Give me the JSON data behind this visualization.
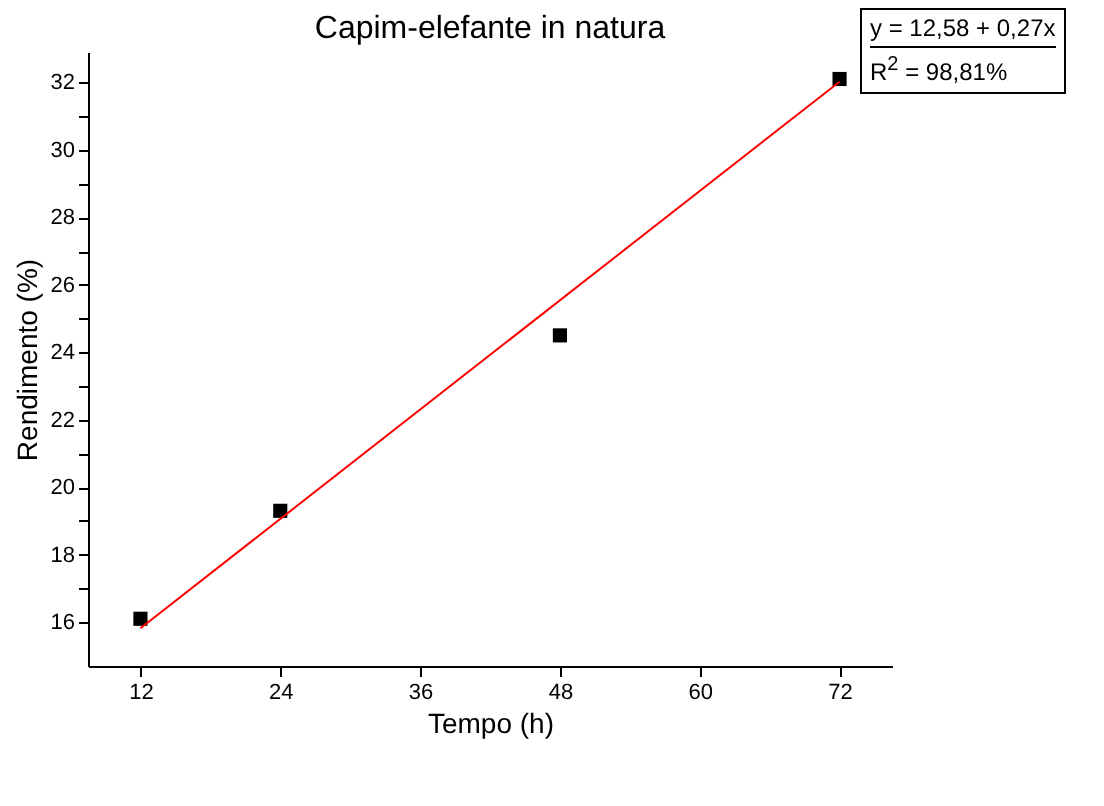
{
  "chart_data": {
    "type": "scatter",
    "title": "Capim-elefante in natura",
    "xlabel": "Tempo (h)",
    "ylabel": "Rendimento (%)",
    "x": [
      12,
      24,
      48,
      72
    ],
    "series": [
      {
        "color": "#000000",
        "marker": "square",
        "values": [
          16.1,
          19.3,
          24.5,
          32.1
        ]
      },
      {
        "type": "line",
        "color": "#ff0000",
        "x": [
          12,
          72
        ],
        "values": [
          15.82,
          32.02
        ]
      }
    ],
    "xlim": [
      7.5,
      76.5
    ],
    "xticks": [
      12,
      24,
      36,
      48,
      60,
      72
    ],
    "ylim": [
      14.7,
      32.9
    ],
    "yticks": [
      16,
      {
        "value": 17,
        "label": null
      },
      18,
      {
        "value": 19,
        "label": null
      },
      20,
      {
        "value": 21,
        "label": null
      },
      22,
      {
        "value": 23,
        "label": null
      },
      24,
      {
        "value": 25,
        "label": null
      },
      26,
      {
        "value": 27,
        "label": null
      },
      28,
      {
        "value": 29,
        "label": null
      },
      30,
      {
        "value": 31,
        "label": null
      },
      32
    ],
    "annotations": [
      "y = 12,58 + 0,27x",
      "R$^{2}$ = 98,81%"
    ],
    "grid": false
  }
}
